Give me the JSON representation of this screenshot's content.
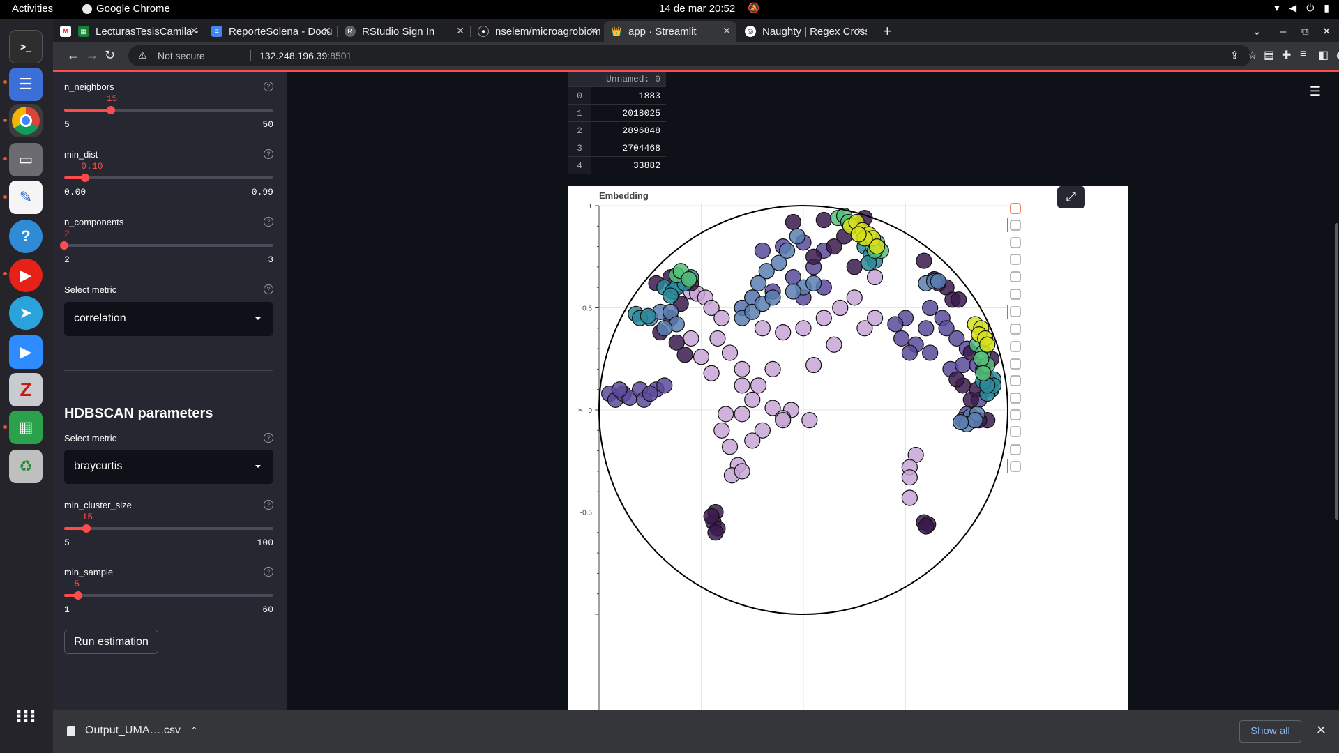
{
  "system_bar": {
    "activities": "Activities",
    "app_name": "Google Chrome",
    "clock": "14 de mar  20:52"
  },
  "dock": {
    "items": [
      "terminal-icon",
      "tasks-icon",
      "chrome-icon",
      "files-icon",
      "text-editor-icon",
      "help-icon",
      "youtube-music-icon",
      "telegram-icon",
      "zoom-icon",
      "zotero-icon",
      "spreadsheet-icon",
      "trash-icon",
      "apps-grid-icon"
    ]
  },
  "tabs": [
    {
      "label": "",
      "icon": "gmail-icon"
    },
    {
      "label": "LecturasTesisCamila - Hoj",
      "icon": "sheets-icon"
    },
    {
      "label": "ReporteSolena - Documen",
      "icon": "docs-icon"
    },
    {
      "label": "RStudio Sign In",
      "icon": "rstudio-icon"
    },
    {
      "label": "nselem/microagrobioma",
      "icon": "github-icon"
    },
    {
      "label": "app · Streamlit",
      "icon": "streamlit-icon"
    },
    {
      "label": "Naughty | Regex Crosswo",
      "icon": "globe-icon"
    }
  ],
  "address": {
    "security": "Not secure",
    "host": "132.248.196.39",
    "port": ":8501"
  },
  "sidebar": {
    "n_neighbors": {
      "label": "n_neighbors",
      "value": "15",
      "min": "5",
      "max": "50",
      "fraction": 0.222
    },
    "min_dist": {
      "label": "min_dist",
      "value": "0.10",
      "min": "0.00",
      "max": "0.99",
      "fraction": 0.101
    },
    "n_components": {
      "label": "n_components",
      "value": "2",
      "min": "2",
      "max": "3",
      "fraction": 0
    },
    "umap_metric": {
      "label": "Select metric",
      "value": "correlation"
    },
    "hdbscan_title": "HDBSCAN parameters",
    "hdbscan_metric": {
      "label": "Select metric",
      "value": "braycurtis"
    },
    "min_cluster_size": {
      "label": "min_cluster_size",
      "value": "15",
      "min": "5",
      "max": "100",
      "fraction": 0.105
    },
    "min_sample": {
      "label": "min_sample",
      "value": "5",
      "min": "1",
      "max": "60",
      "fraction": 0.068
    },
    "run_button": "Run estimation"
  },
  "dataframe": {
    "column": "Unnamed: 0",
    "index": [
      "0",
      "1",
      "2",
      "3",
      "4"
    ],
    "values": [
      "1883",
      "2018025",
      "2896848",
      "2704468",
      "33882"
    ]
  },
  "chart_data": {
    "type": "scatter",
    "title": "Embedding",
    "ylabel": "y",
    "xlabel": "",
    "xlim": [
      -1,
      1
    ],
    "ylim": [
      -1,
      1
    ],
    "yticks": [
      "1",
      "0.5",
      "0",
      "-0.5"
    ],
    "grid": true,
    "boundary_circle": {
      "cx": 0,
      "cy": 0,
      "r": 1
    },
    "clusters": [
      {
        "color": "#c8a6d6",
        "points": [
          [
            -0.55,
            0.58
          ],
          [
            -0.52,
            0.57
          ],
          [
            -0.48,
            0.55
          ],
          [
            -0.45,
            0.5
          ],
          [
            -0.4,
            0.45
          ],
          [
            -0.55,
            0.35
          ],
          [
            -0.42,
            0.35
          ],
          [
            -0.36,
            0.28
          ],
          [
            -0.5,
            0.26
          ],
          [
            -0.45,
            0.18
          ],
          [
            -0.3,
            0.2
          ],
          [
            -0.3,
            0.12
          ],
          [
            -0.22,
            0.12
          ],
          [
            -0.25,
            0.05
          ],
          [
            -0.3,
            -0.02
          ],
          [
            -0.15,
            0.01
          ],
          [
            -0.06,
            0.0
          ],
          [
            0.03,
            -0.05
          ],
          [
            -0.1,
            -0.04
          ],
          [
            -0.2,
            -0.1
          ],
          [
            -0.25,
            -0.15
          ],
          [
            -0.38,
            -0.02
          ],
          [
            -0.4,
            -0.1
          ],
          [
            -0.36,
            -0.18
          ],
          [
            -0.32,
            -0.27
          ],
          [
            -0.35,
            -0.32
          ],
          [
            -0.3,
            -0.3
          ],
          [
            -0.1,
            -0.05
          ],
          [
            -0.15,
            0.2
          ],
          [
            0.05,
            0.22
          ],
          [
            0.15,
            0.32
          ],
          [
            0.3,
            0.4
          ],
          [
            0.35,
            0.45
          ],
          [
            0.1,
            0.45
          ],
          [
            0.0,
            0.4
          ],
          [
            -0.25,
            0.55
          ],
          [
            0.55,
            -0.22
          ],
          [
            0.52,
            -0.28
          ],
          [
            0.52,
            -0.33
          ],
          [
            0.52,
            -0.43
          ],
          [
            0.18,
            0.5
          ],
          [
            0.25,
            0.55
          ],
          [
            0.35,
            0.65
          ],
          [
            -0.1,
            0.38
          ],
          [
            -0.2,
            0.4
          ],
          [
            -0.3,
            0.5
          ]
        ]
      },
      {
        "color": "#5b4a9a",
        "points": [
          [
            -0.95,
            0.08
          ],
          [
            -0.92,
            0.05
          ],
          [
            -0.88,
            0.08
          ],
          [
            -0.85,
            0.06
          ],
          [
            -0.8,
            0.1
          ],
          [
            -0.78,
            0.05
          ],
          [
            -0.72,
            0.1
          ],
          [
            -0.68,
            0.12
          ],
          [
            -0.75,
            0.08
          ],
          [
            -0.9,
            0.1
          ],
          [
            0.62,
            0.5
          ],
          [
            0.68,
            0.45
          ],
          [
            0.7,
            0.4
          ],
          [
            0.75,
            0.35
          ],
          [
            0.8,
            0.3
          ],
          [
            0.6,
            0.4
          ],
          [
            0.55,
            0.32
          ],
          [
            0.62,
            0.28
          ],
          [
            0.72,
            0.2
          ],
          [
            0.78,
            0.22
          ],
          [
            0.85,
            0.22
          ],
          [
            0.9,
            0.15
          ],
          [
            0.86,
            0.05
          ],
          [
            0.8,
            -0.02
          ],
          [
            0.78,
            -0.05
          ],
          [
            0.5,
            0.45
          ],
          [
            0.45,
            0.42
          ],
          [
            0.48,
            0.35
          ],
          [
            0.52,
            0.28
          ],
          [
            -0.2,
            0.78
          ],
          [
            -0.1,
            0.8
          ],
          [
            0.0,
            0.82
          ],
          [
            0.1,
            0.78
          ],
          [
            0.05,
            0.7
          ],
          [
            -0.05,
            0.65
          ],
          [
            -0.15,
            0.58
          ],
          [
            0.0,
            0.55
          ],
          [
            0.1,
            0.6
          ]
        ]
      },
      {
        "color": "#3b1a4e",
        "points": [
          [
            -0.43,
            -0.5
          ],
          [
            -0.44,
            -0.55
          ],
          [
            -0.42,
            -0.58
          ],
          [
            -0.43,
            -0.6
          ],
          [
            -0.45,
            -0.52
          ],
          [
            0.59,
            -0.55
          ],
          [
            0.61,
            -0.56
          ],
          [
            0.6,
            -0.57
          ],
          [
            0.59,
            0.73
          ],
          [
            0.7,
            0.6
          ],
          [
            0.64,
            0.64
          ],
          [
            0.66,
            0.62
          ],
          [
            0.73,
            0.54
          ],
          [
            0.76,
            0.54
          ],
          [
            -0.72,
            0.62
          ],
          [
            -0.65,
            0.65
          ],
          [
            -0.55,
            0.62
          ],
          [
            -0.6,
            0.52
          ],
          [
            -0.65,
            0.45
          ],
          [
            -0.7,
            0.38
          ],
          [
            -0.62,
            0.33
          ],
          [
            -0.58,
            0.27
          ],
          [
            0.3,
            0.94
          ],
          [
            0.1,
            0.93
          ],
          [
            -0.05,
            0.92
          ],
          [
            0.2,
            0.85
          ],
          [
            0.15,
            0.8
          ],
          [
            0.25,
            0.7
          ],
          [
            0.05,
            0.75
          ],
          [
            0.78,
            0.12
          ],
          [
            0.82,
            0.05
          ],
          [
            0.85,
            0.1
          ],
          [
            0.88,
            0.2
          ],
          [
            0.92,
            0.25
          ],
          [
            0.82,
            0.28
          ],
          [
            0.75,
            0.15
          ],
          [
            0.9,
            -0.05
          ],
          [
            0.86,
            -0.05
          ]
        ]
      },
      {
        "color": "#5a7fb2",
        "points": [
          [
            -0.3,
            0.5
          ],
          [
            -0.25,
            0.55
          ],
          [
            -0.22,
            0.62
          ],
          [
            -0.18,
            0.68
          ],
          [
            -0.12,
            0.72
          ],
          [
            -0.08,
            0.78
          ],
          [
            -0.03,
            0.85
          ],
          [
            -0.3,
            0.45
          ],
          [
            -0.25,
            0.48
          ],
          [
            -0.2,
            0.52
          ],
          [
            -0.15,
            0.55
          ],
          [
            0.0,
            0.6
          ],
          [
            0.05,
            0.62
          ],
          [
            -0.05,
            0.58
          ],
          [
            -0.75,
            0.45
          ],
          [
            -0.7,
            0.48
          ],
          [
            -0.65,
            0.48
          ],
          [
            -0.62,
            0.42
          ],
          [
            -0.68,
            0.4
          ],
          [
            0.82,
            -0.03
          ],
          [
            0.85,
            -0.02
          ],
          [
            0.8,
            -0.07
          ],
          [
            0.84,
            -0.05
          ],
          [
            0.77,
            -0.06
          ],
          [
            0.6,
            0.62
          ],
          [
            0.64,
            0.63
          ],
          [
            0.66,
            0.63
          ]
        ]
      },
      {
        "color": "#2a8a9a",
        "points": [
          [
            -0.82,
            0.47
          ],
          [
            -0.8,
            0.45
          ],
          [
            -0.76,
            0.46
          ],
          [
            -0.68,
            0.6
          ],
          [
            -0.64,
            0.58
          ],
          [
            -0.62,
            0.6
          ],
          [
            -0.58,
            0.62
          ],
          [
            -0.55,
            0.65
          ],
          [
            -0.65,
            0.56
          ],
          [
            0.3,
            0.8
          ],
          [
            0.33,
            0.76
          ],
          [
            0.35,
            0.73
          ],
          [
            0.32,
            0.72
          ],
          [
            0.93,
            0.15
          ],
          [
            0.92,
            0.1
          ],
          [
            0.9,
            0.08
          ],
          [
            0.93,
            0.12
          ],
          [
            0.88,
            0.14
          ],
          [
            0.9,
            0.12
          ]
        ]
      },
      {
        "color": "#55c07a",
        "points": [
          [
            -0.62,
            0.66
          ],
          [
            -0.6,
            0.68
          ],
          [
            -0.56,
            0.64
          ],
          [
            0.17,
            0.94
          ],
          [
            0.2,
            0.95
          ],
          [
            0.22,
            0.92
          ],
          [
            0.34,
            0.8
          ],
          [
            0.36,
            0.82
          ],
          [
            0.38,
            0.78
          ],
          [
            0.35,
            0.78
          ],
          [
            0.85,
            0.32
          ],
          [
            0.88,
            0.28
          ],
          [
            0.9,
            0.22
          ],
          [
            0.87,
            0.25
          ],
          [
            0.88,
            0.18
          ]
        ]
      },
      {
        "color": "#d6e01c",
        "points": [
          [
            0.23,
            0.9
          ],
          [
            0.26,
            0.92
          ],
          [
            0.29,
            0.88
          ],
          [
            0.32,
            0.86
          ],
          [
            0.34,
            0.84
          ],
          [
            0.36,
            0.8
          ],
          [
            0.3,
            0.84
          ],
          [
            0.27,
            0.86
          ],
          [
            0.84,
            0.42
          ],
          [
            0.87,
            0.4
          ],
          [
            0.86,
            0.37
          ],
          [
            0.89,
            0.35
          ],
          [
            0.9,
            0.32
          ]
        ]
      }
    ]
  }
}
